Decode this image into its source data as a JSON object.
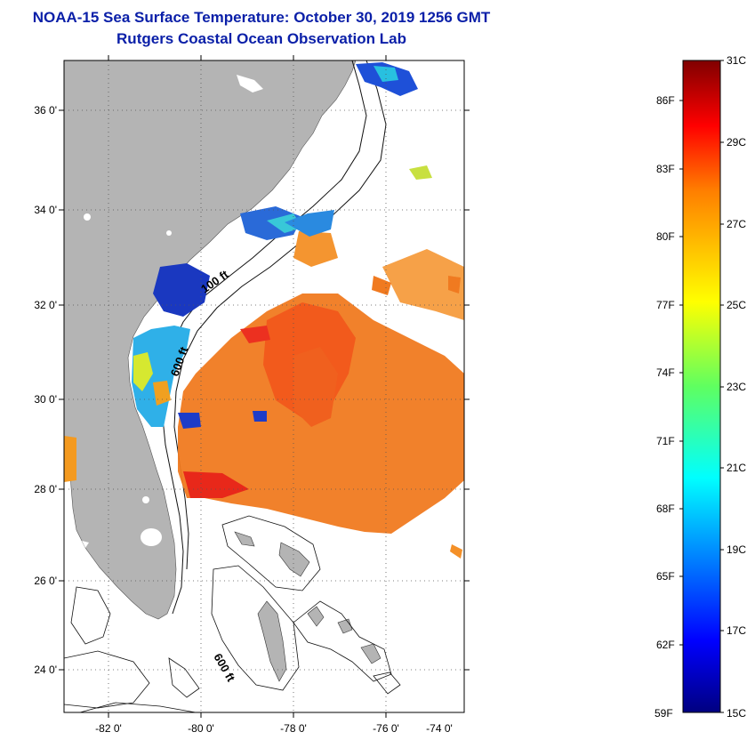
{
  "title": {
    "line1": "NOAA-15 Sea Surface Temperature:  October 30, 2019 1256 GMT",
    "line2": "Rutgers Coastal Ocean Observation Lab"
  },
  "map": {
    "lat_labels": [
      "36 0'",
      "34 0'",
      "32 0'",
      "30 0'",
      "28 0'",
      "26 0'",
      "24 0'"
    ],
    "lon_labels": [
      "-82 0'",
      "-80 0'",
      "-78 0'",
      "-76 0'",
      "-74 0'"
    ],
    "contours": [
      "100 ft",
      "600 ft",
      "600 ft"
    ]
  },
  "colorbar": {
    "fahrenheit": [
      "86F",
      "83F",
      "80F",
      "77F",
      "74F",
      "71F",
      "68F",
      "65F",
      "62F",
      "59F"
    ],
    "celsius": [
      "31C",
      "29C",
      "27C",
      "25C",
      "23C",
      "21C",
      "19C",
      "17C",
      "15C"
    ],
    "range_c": [
      15,
      31
    ]
  },
  "colors": {
    "title": "#0a1fa8",
    "land": "#b4b4b4",
    "warm": "#f07a20",
    "cool": "#1e3cc8"
  }
}
